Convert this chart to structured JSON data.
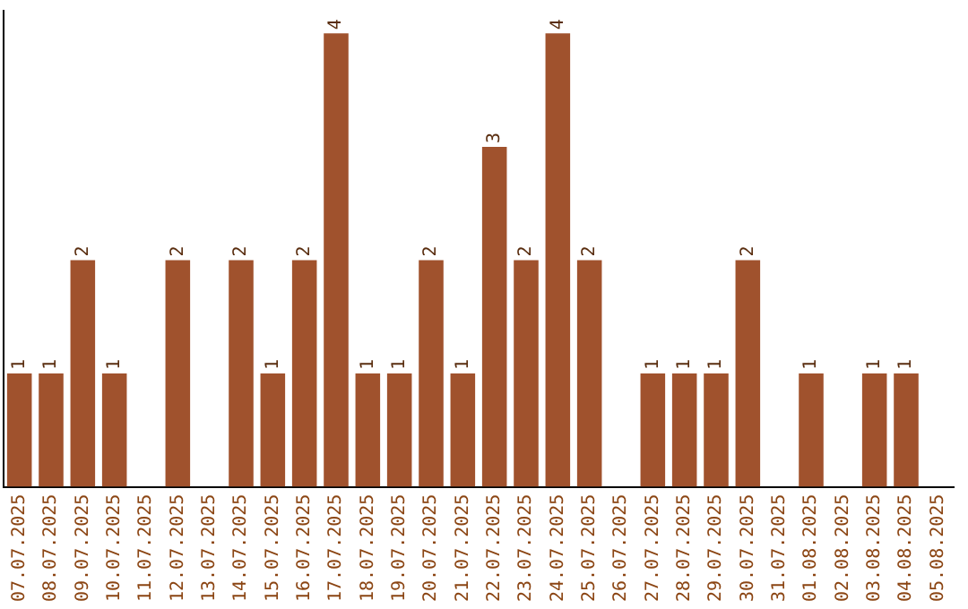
{
  "chart_data": {
    "type": "bar",
    "categories": [
      "07.07.2025",
      "08.07.2025",
      "09.07.2025",
      "10.07.2025",
      "11.07.2025",
      "12.07.2025",
      "13.07.2025",
      "14.07.2025",
      "15.07.2025",
      "16.07.2025",
      "17.07.2025",
      "18.07.2025",
      "19.07.2025",
      "20.07.2025",
      "21.07.2025",
      "22.07.2025",
      "23.07.2025",
      "24.07.2025",
      "25.07.2025",
      "26.07.2025",
      "27.07.2025",
      "28.07.2025",
      "29.07.2025",
      "30.07.2025",
      "31.07.2025",
      "01.08.2025",
      "02.08.2025",
      "03.08.2025",
      "04.08.2025",
      "05.08.2025"
    ],
    "values": [
      1,
      1,
      2,
      1,
      0,
      2,
      0,
      2,
      1,
      2,
      4,
      1,
      1,
      2,
      1,
      3,
      2,
      4,
      2,
      0,
      1,
      1,
      1,
      2,
      0,
      1,
      0,
      1,
      1,
      0
    ],
    "value_labels": [
      "1",
      "1",
      "2",
      "1",
      null,
      "2",
      null,
      "2",
      "1",
      "2",
      "4",
      "1",
      "1",
      "2",
      "1",
      "3",
      "2",
      "4",
      "2",
      null,
      "1",
      "1",
      "1",
      "2",
      null,
      "1",
      null,
      "1",
      "1",
      null
    ],
    "color": "#a0522d",
    "ylim": [
      0,
      4.2
    ],
    "tick_labels": "x",
    "grid": false,
    "legend": false
  }
}
